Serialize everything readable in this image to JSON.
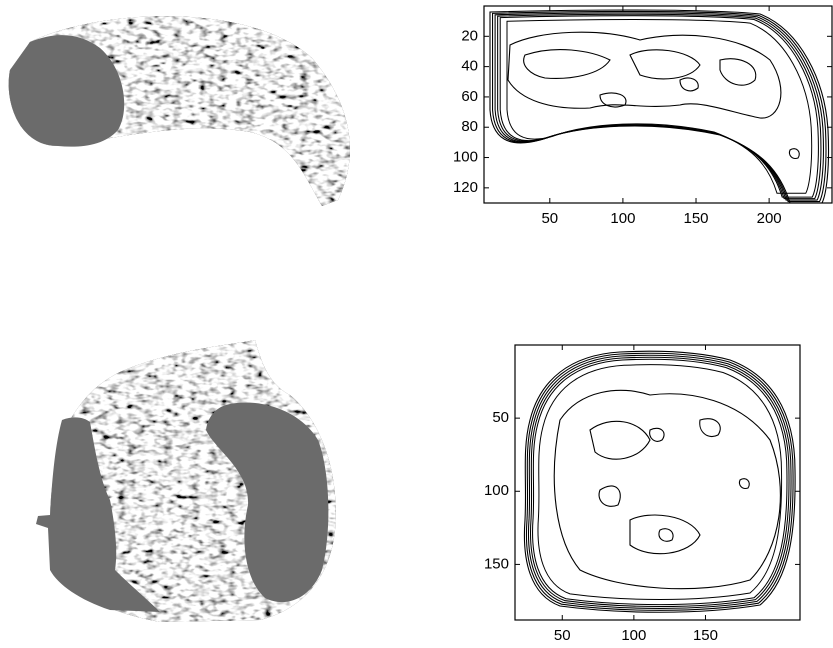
{
  "panels": [
    {
      "xlim": [
        5,
        243
      ],
      "ylim": [
        0,
        130
      ],
      "y_reversed": true,
      "xticks": [
        50,
        100,
        150,
        200
      ],
      "yticks": [
        20,
        40,
        60,
        80,
        100,
        120
      ]
    },
    {
      "xlim": [
        17,
        216
      ],
      "ylim": [
        0,
        188
      ],
      "y_reversed": true,
      "xticks": [
        50,
        100,
        150
      ],
      "yticks": [
        50,
        100,
        150
      ]
    }
  ]
}
